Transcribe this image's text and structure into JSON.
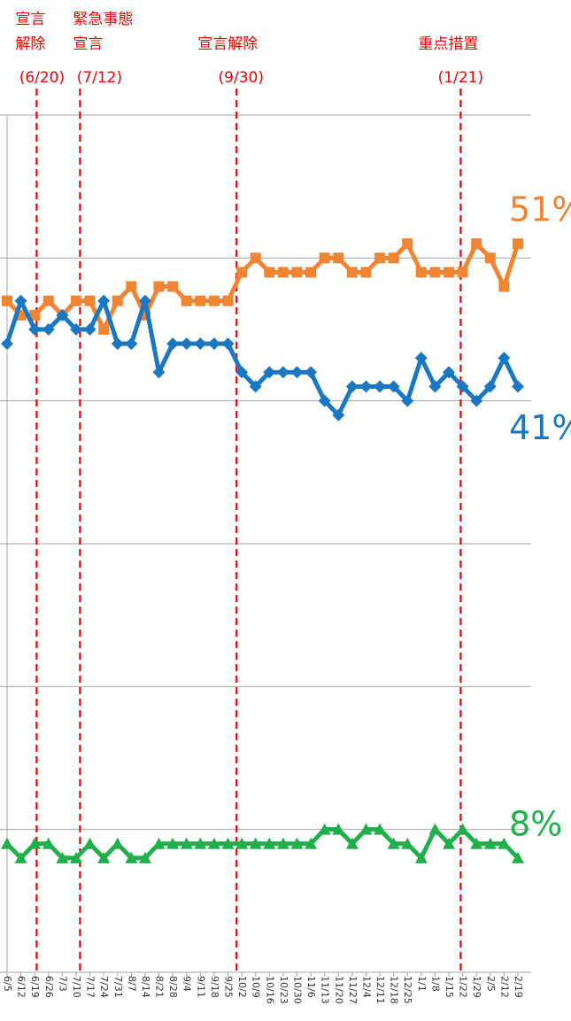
{
  "chart_data": {
    "type": "line",
    "categories": [
      "6/5",
      "6/12",
      "6/19",
      "6/26",
      "7/3",
      "7/10",
      "7/17",
      "7/24",
      "7/31",
      "8/7",
      "8/14",
      "8/21",
      "8/28",
      "9/4",
      "9/11",
      "9/18",
      "9/25",
      "10/2",
      "10/9",
      "10/16",
      "10/23",
      "10/30",
      "11/6",
      "11/13",
      "11/20",
      "11/27",
      "12/4",
      "12/11",
      "12/18",
      "12/25",
      "1/1",
      "1/8",
      "1/15",
      "1/22",
      "1/29",
      "2/5",
      "2/12",
      "2/19"
    ],
    "series": [
      {
        "color": "#ef8433",
        "marker": "square",
        "end_label": "51%",
        "values": [
          47,
          46,
          46,
          47,
          46,
          47,
          47,
          45,
          47,
          48,
          46,
          48,
          48,
          47,
          47,
          47,
          47,
          49,
          50,
          49,
          49,
          49,
          49,
          50,
          50,
          49,
          49,
          50,
          50,
          51,
          49,
          49,
          49,
          49,
          51,
          50,
          48,
          51
        ]
      },
      {
        "color": "#1a78c2",
        "marker": "diamond",
        "end_label": "41%",
        "values": [
          44,
          47,
          45,
          45,
          46,
          45,
          45,
          47,
          44,
          44,
          47,
          42,
          44,
          44,
          44,
          44,
          44,
          42,
          41,
          42,
          42,
          42,
          42,
          40,
          39,
          41,
          41,
          41,
          41,
          40,
          43,
          41,
          42,
          41,
          40,
          41,
          43,
          41
        ]
      },
      {
        "color": "#1fb04b",
        "marker": "triangle",
        "end_label": "8%",
        "values": [
          9,
          8,
          9,
          9,
          8,
          8,
          9,
          8,
          9,
          8,
          8,
          9,
          9,
          9,
          9,
          9,
          9,
          9,
          9,
          9,
          9,
          9,
          9,
          10,
          10,
          9,
          10,
          10,
          9,
          9,
          8,
          10,
          9,
          10,
          9,
          9,
          9,
          8
        ]
      }
    ],
    "events": [
      {
        "lines": [
          "宣言",
          "解除"
        ],
        "date": "(6/20)",
        "at": "6/20"
      },
      {
        "lines": [
          "緊急事態",
          "宣言"
        ],
        "date": "(7/12)",
        "at": "7/12"
      },
      {
        "lines": [
          "宣言解除"
        ],
        "date": "(9/30)",
        "at": "9/30"
      },
      {
        "lines": [
          "重点措置"
        ],
        "date": "(1/21)",
        "at": "1/21"
      }
    ],
    "ylim": [
      0,
      60
    ],
    "yticks": [
      0,
      10,
      20,
      30,
      40,
      50,
      60
    ],
    "grid": true
  }
}
